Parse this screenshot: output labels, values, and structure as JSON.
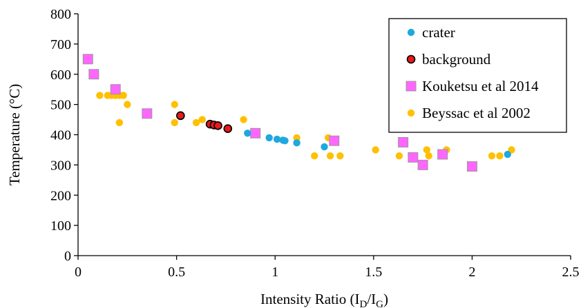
{
  "chart_data": {
    "type": "scatter",
    "title": "",
    "xlabel_main": "Intensity Ratio (I",
    "xlabel_sub1": "D",
    "xlabel_mid": "/I",
    "xlabel_sub2": "G",
    "xlabel_end": ")",
    "ylabel": "Temperature (°C)",
    "xlim": [
      0,
      2.5
    ],
    "ylim": [
      0,
      800
    ],
    "x_ticks": [
      0,
      0.5,
      1,
      1.5,
      2,
      2.5
    ],
    "x_tick_labels": [
      "0",
      "0.5",
      "1",
      "1.5",
      "2",
      "2.5"
    ],
    "y_ticks": [
      0,
      100,
      200,
      300,
      400,
      500,
      600,
      700,
      800
    ],
    "y_tick_labels": [
      "0",
      "100",
      "200",
      "300",
      "400",
      "500",
      "600",
      "700",
      "800"
    ],
    "grid": false,
    "legend_position": "top-right",
    "series": [
      {
        "name": "Beyssac et al 2002",
        "marker": "circle",
        "color": "#ffc000",
        "points": [
          [
            0.11,
            530
          ],
          [
            0.15,
            530
          ],
          [
            0.17,
            530
          ],
          [
            0.19,
            530
          ],
          [
            0.21,
            530
          ],
          [
            0.23,
            530
          ],
          [
            0.21,
            440
          ],
          [
            0.25,
            500
          ],
          [
            0.49,
            500
          ],
          [
            0.49,
            440
          ],
          [
            0.6,
            440
          ],
          [
            0.63,
            450
          ],
          [
            0.84,
            450
          ],
          [
            1.11,
            390
          ],
          [
            1.27,
            390
          ],
          [
            1.2,
            330
          ],
          [
            1.28,
            330
          ],
          [
            1.33,
            330
          ],
          [
            1.51,
            350
          ],
          [
            1.63,
            330
          ],
          [
            1.77,
            350
          ],
          [
            1.78,
            330
          ],
          [
            1.87,
            350
          ],
          [
            2.1,
            330
          ],
          [
            2.14,
            330
          ],
          [
            2.2,
            350
          ]
        ]
      },
      {
        "name": "Kouketsu et al 2014",
        "marker": "square",
        "color": "#ff66ff",
        "points": [
          [
            0.05,
            650
          ],
          [
            0.08,
            600
          ],
          [
            0.19,
            550
          ],
          [
            0.35,
            470
          ],
          [
            0.9,
            405
          ],
          [
            1.3,
            380
          ],
          [
            1.65,
            375
          ],
          [
            1.7,
            325
          ],
          [
            1.75,
            300
          ],
          [
            1.85,
            335
          ],
          [
            2.0,
            295
          ]
        ]
      },
      {
        "name": "crater",
        "marker": "circle",
        "color": "#1ea8e0",
        "points": [
          [
            0.86,
            405
          ],
          [
            0.97,
            390
          ],
          [
            1.01,
            385
          ],
          [
            1.04,
            382
          ],
          [
            1.05,
            380
          ],
          [
            1.11,
            373
          ],
          [
            1.25,
            360
          ],
          [
            2.18,
            335
          ]
        ]
      },
      {
        "name": "background",
        "marker": "circle",
        "color": "#e41a1c",
        "points": [
          [
            0.52,
            463
          ],
          [
            0.67,
            435
          ],
          [
            0.69,
            432
          ],
          [
            0.71,
            430
          ],
          [
            0.76,
            420
          ]
        ]
      }
    ],
    "legend_order": [
      "crater",
      "background",
      "Kouketsu et al 2014",
      "Beyssac et al 2002"
    ]
  }
}
